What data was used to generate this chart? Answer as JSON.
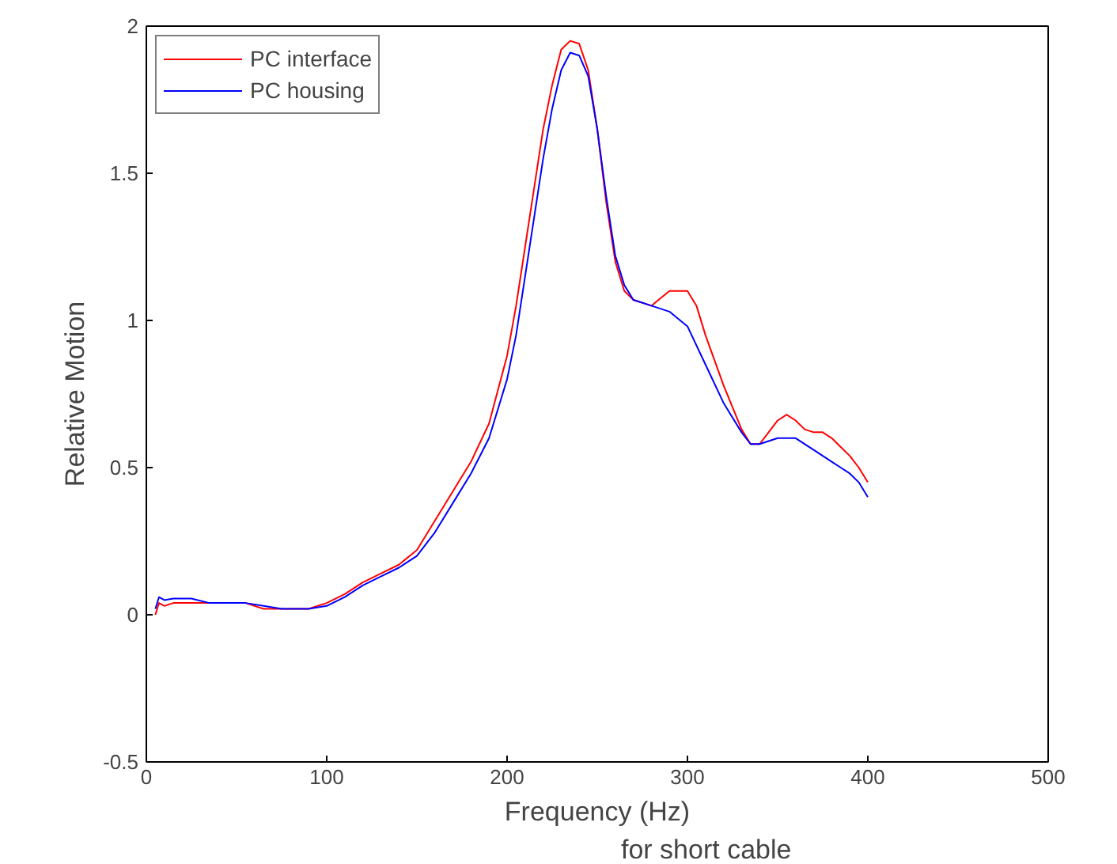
{
  "chart_data": {
    "type": "line",
    "xlabel": "Frequency (Hz)",
    "ylabel": "Relative Motion",
    "annotations": [
      "for short cable"
    ],
    "xlim": [
      0,
      500
    ],
    "xticks": [
      0,
      100,
      200,
      300,
      400,
      500
    ],
    "ylim": [
      -0.5,
      2
    ],
    "yticks": [
      -0.5,
      0,
      0.5,
      1,
      1.5,
      2
    ],
    "grid": false,
    "legend": "top left",
    "series": [
      {
        "name": "PC interface",
        "color": "#ff0000",
        "x": [
          5,
          7,
          10,
          15,
          25,
          35,
          55,
          65,
          75,
          90,
          100,
          110,
          120,
          130,
          140,
          150,
          160,
          170,
          180,
          190,
          200,
          205,
          210,
          215,
          220,
          225,
          230,
          235,
          240,
          245,
          250,
          255,
          260,
          265,
          270,
          280,
          290,
          300,
          305,
          310,
          320,
          330,
          335,
          340,
          345,
          350,
          355,
          360,
          365,
          370,
          375,
          380,
          385,
          390,
          395,
          400
        ],
        "values": [
          0.0,
          0.04,
          0.03,
          0.04,
          0.04,
          0.04,
          0.04,
          0.02,
          0.02,
          0.02,
          0.04,
          0.07,
          0.11,
          0.14,
          0.17,
          0.22,
          0.32,
          0.42,
          0.52,
          0.65,
          0.88,
          1.05,
          1.25,
          1.45,
          1.65,
          1.8,
          1.92,
          1.95,
          1.94,
          1.85,
          1.65,
          1.4,
          1.2,
          1.1,
          1.07,
          1.05,
          1.1,
          1.1,
          1.05,
          0.95,
          0.78,
          0.63,
          0.58,
          0.58,
          0.62,
          0.66,
          0.68,
          0.66,
          0.63,
          0.62,
          0.62,
          0.6,
          0.57,
          0.54,
          0.5,
          0.45
        ]
      },
      {
        "name": "PC housing",
        "color": "#0000ff",
        "x": [
          5,
          7,
          10,
          15,
          25,
          35,
          55,
          65,
          75,
          90,
          100,
          110,
          120,
          130,
          140,
          150,
          160,
          170,
          180,
          190,
          200,
          205,
          210,
          215,
          220,
          225,
          230,
          235,
          240,
          245,
          250,
          255,
          260,
          265,
          270,
          280,
          290,
          300,
          310,
          320,
          330,
          335,
          340,
          350,
          360,
          370,
          380,
          385,
          390,
          395,
          400
        ],
        "values": [
          0.02,
          0.06,
          0.05,
          0.055,
          0.055,
          0.04,
          0.04,
          0.03,
          0.02,
          0.02,
          0.03,
          0.06,
          0.1,
          0.13,
          0.16,
          0.2,
          0.28,
          0.38,
          0.48,
          0.6,
          0.8,
          0.95,
          1.15,
          1.35,
          1.55,
          1.72,
          1.85,
          1.91,
          1.9,
          1.83,
          1.65,
          1.42,
          1.22,
          1.12,
          1.07,
          1.05,
          1.03,
          0.98,
          0.85,
          0.72,
          0.62,
          0.58,
          0.58,
          0.6,
          0.6,
          0.56,
          0.52,
          0.5,
          0.48,
          0.45,
          0.4
        ]
      }
    ]
  }
}
